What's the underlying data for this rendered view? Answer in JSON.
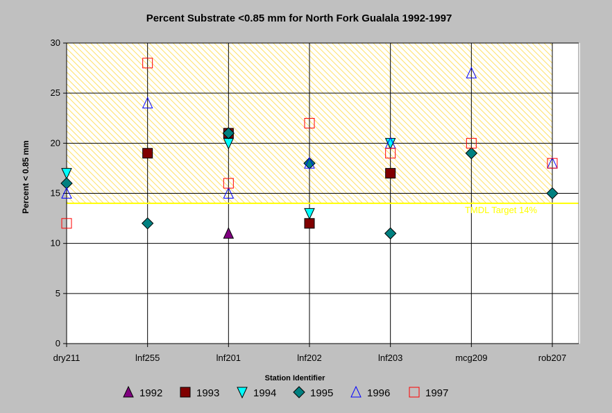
{
  "chart_data": {
    "type": "scatter",
    "title": "Percent Substrate <0.85 mm for North Fork Gualala 1992-1997",
    "xlabel": "Station Identifier",
    "ylabel": "Percent < 0.85 mm",
    "categories": [
      "dry211",
      "lnf255",
      "lnf201",
      "lnf202",
      "lnf203",
      "mcg209",
      "rob207"
    ],
    "ylim": [
      0,
      30
    ],
    "yticks": [
      0,
      5,
      10,
      15,
      20,
      25,
      30
    ],
    "grid": true,
    "legend_position": "bottom",
    "target": {
      "value": 14,
      "label": "TMDL Target 14%",
      "color": "#ffff00"
    },
    "series": [
      {
        "name": "1992",
        "marker": "triangle-up",
        "color": "#800080",
        "fill": true,
        "values": [
          null,
          null,
          11,
          null,
          null,
          null,
          null
        ]
      },
      {
        "name": "1993",
        "marker": "square",
        "color": "#800000",
        "fill": true,
        "values": [
          null,
          19,
          21,
          12,
          17,
          null,
          null
        ]
      },
      {
        "name": "1994",
        "marker": "triangle-down",
        "color": "#00ffff",
        "fill": true,
        "values": [
          17,
          null,
          20,
          13,
          20,
          null,
          null
        ]
      },
      {
        "name": "1995",
        "marker": "diamond",
        "color": "#008080",
        "fill": true,
        "values": [
          16,
          12,
          21,
          18,
          11,
          19,
          15
        ]
      },
      {
        "name": "1996",
        "marker": "triangle-up",
        "color": "#0000ff",
        "fill": false,
        "values": [
          15,
          24,
          15,
          18,
          20,
          27,
          18
        ]
      },
      {
        "name": "1997",
        "marker": "square",
        "color": "#ff0000",
        "fill": false,
        "values": [
          12,
          28,
          16,
          22,
          19,
          20,
          18
        ]
      }
    ]
  }
}
